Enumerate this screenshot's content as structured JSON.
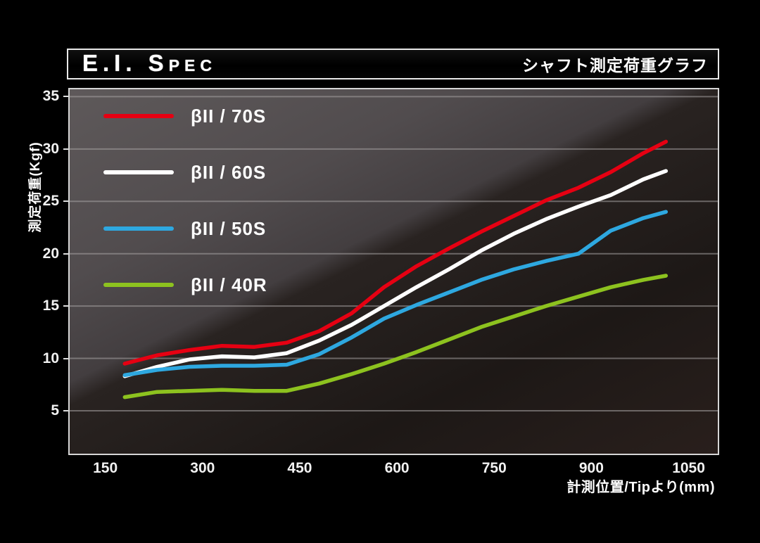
{
  "header": {
    "title": "E.I. Spec",
    "subtitle": "シャフト測定荷重グラフ"
  },
  "chart_data": {
    "type": "line",
    "title": "E.I. Spec",
    "subtitle": "シャフト測定荷重グラフ",
    "xlabel": "計測位置/Tipより(mm)",
    "ylabel": "測定荷重(Kgf)",
    "x_ticks": [
      150,
      300,
      450,
      600,
      750,
      900,
      1050
    ],
    "y_ticks": [
      35,
      30,
      25,
      20,
      15,
      10,
      5
    ],
    "xlim": [
      95,
      1095
    ],
    "ylim": [
      0.9,
      35.7
    ],
    "grid": "horizontal-only",
    "legend_position": "upper-left",
    "background": {
      "sheen_gray": "#555052",
      "dark": "#1d1816",
      "frame": "#d6d6d6",
      "gridline": "#a8a4a4"
    },
    "x": [
      180,
      230,
      280,
      330,
      380,
      430,
      480,
      530,
      580,
      630,
      680,
      730,
      780,
      830,
      880,
      930,
      980,
      1015
    ],
    "series": [
      {
        "name": "βII / 70S",
        "color": "#e60012",
        "values": [
          9.5,
          10.3,
          10.8,
          11.2,
          11.1,
          11.5,
          12.6,
          14.3,
          16.8,
          18.8,
          20.5,
          22.1,
          23.6,
          25.1,
          26.3,
          27.8,
          29.6,
          30.7
        ]
      },
      {
        "name": "βII / 60S",
        "color": "#ffffff",
        "values": [
          8.3,
          9.2,
          9.9,
          10.2,
          10.1,
          10.5,
          11.7,
          13.2,
          15.0,
          16.8,
          18.5,
          20.3,
          21.9,
          23.3,
          24.5,
          25.6,
          27.1,
          27.9
        ]
      },
      {
        "name": "βII / 50S",
        "color": "#2ea8e0",
        "values": [
          8.4,
          8.9,
          9.2,
          9.3,
          9.3,
          9.4,
          10.4,
          12.0,
          13.8,
          15.1,
          16.3,
          17.5,
          18.5,
          19.3,
          20.0,
          22.2,
          23.4,
          24.0
        ]
      },
      {
        "name": "βII / 40R",
        "color": "#8dc21f",
        "values": [
          6.3,
          6.8,
          6.9,
          7.0,
          6.9,
          6.9,
          7.6,
          8.5,
          9.5,
          10.6,
          11.8,
          13.0,
          14.0,
          15.0,
          15.9,
          16.8,
          17.5,
          17.9
        ]
      }
    ]
  }
}
